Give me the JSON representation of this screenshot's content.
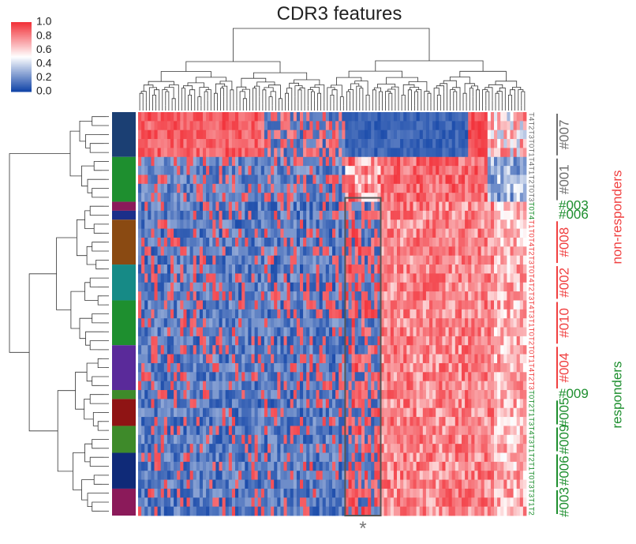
{
  "chart_data": {
    "type": "heatmap",
    "title": "CDR3 features",
    "colorbar": {
      "ticks": [
        "1.0",
        "0.8",
        "0.6",
        "0.4",
        "0.2",
        "0.0"
      ],
      "vmin": 0.0,
      "vmax": 1.0,
      "colors": [
        "#1446a8",
        "#ffffff",
        "#f2323a"
      ]
    },
    "n_feature_columns": 120,
    "rows": [
      {
        "label": "T4",
        "patient": "#007",
        "group": "non-responders"
      },
      {
        "label": "T2",
        "patient": "#007",
        "group": "non-responders"
      },
      {
        "label": "T3",
        "patient": "#007",
        "group": "non-responders"
      },
      {
        "label": "T0",
        "patient": "#007",
        "group": "non-responders"
      },
      {
        "label": "T1",
        "patient": "#007",
        "group": "non-responders"
      },
      {
        "label": "T4",
        "patient": "#001",
        "group": "non-responders"
      },
      {
        "label": "T1",
        "patient": "#001",
        "group": "non-responders"
      },
      {
        "label": "T2",
        "patient": "#001",
        "group": "non-responders"
      },
      {
        "label": "T0",
        "patient": "#001",
        "group": "non-responders"
      },
      {
        "label": "T3",
        "patient": "#001",
        "group": "non-responders"
      },
      {
        "label": "T0",
        "patient": "#003",
        "group": "responders"
      },
      {
        "label": "T4",
        "patient": "#006",
        "group": "responders"
      },
      {
        "label": "T1",
        "patient": "#008",
        "group": "non-responders"
      },
      {
        "label": "T0",
        "patient": "#008",
        "group": "non-responders"
      },
      {
        "label": "T4",
        "patient": "#008",
        "group": "non-responders"
      },
      {
        "label": "T2",
        "patient": "#008",
        "group": "non-responders"
      },
      {
        "label": "T3",
        "patient": "#008",
        "group": "non-responders"
      },
      {
        "label": "T0",
        "patient": "#002",
        "group": "non-responders"
      },
      {
        "label": "T4",
        "patient": "#002",
        "group": "non-responders"
      },
      {
        "label": "T2",
        "patient": "#002",
        "group": "non-responders"
      },
      {
        "label": "T3",
        "patient": "#002",
        "group": "non-responders"
      },
      {
        "label": "T4",
        "patient": "#010",
        "group": "non-responders"
      },
      {
        "label": "T3",
        "patient": "#010",
        "group": "non-responders"
      },
      {
        "label": "T1",
        "patient": "#010",
        "group": "non-responders"
      },
      {
        "label": "T0",
        "patient": "#010",
        "group": "non-responders"
      },
      {
        "label": "T2",
        "patient": "#010",
        "group": "non-responders"
      },
      {
        "label": "T0",
        "patient": "#004",
        "group": "non-responders"
      },
      {
        "label": "T1",
        "patient": "#004",
        "group": "non-responders"
      },
      {
        "label": "T4",
        "patient": "#004",
        "group": "non-responders"
      },
      {
        "label": "T2",
        "patient": "#004",
        "group": "non-responders"
      },
      {
        "label": "T3",
        "patient": "#004",
        "group": "non-responders"
      },
      {
        "label": "T0",
        "patient": "#009",
        "group": "responders"
      },
      {
        "label": "T2",
        "patient": "#005",
        "group": "responders"
      },
      {
        "label": "T1",
        "patient": "#005",
        "group": "responders"
      },
      {
        "label": "T3",
        "patient": "#005",
        "group": "responders"
      },
      {
        "label": "T4",
        "patient": "#009",
        "group": "responders"
      },
      {
        "label": "T3",
        "patient": "#009",
        "group": "responders"
      },
      {
        "label": "T1",
        "patient": "#009",
        "group": "responders"
      },
      {
        "label": "T2",
        "patient": "#006",
        "group": "responders"
      },
      {
        "label": "T1",
        "patient": "#006",
        "group": "responders"
      },
      {
        "label": "T0",
        "patient": "#006",
        "group": "responders"
      },
      {
        "label": "T3",
        "patient": "#006",
        "group": "responders"
      },
      {
        "label": "T3",
        "patient": "#003",
        "group": "responders"
      },
      {
        "label": "T1",
        "patient": "#003",
        "group": "responders"
      },
      {
        "label": "T2",
        "patient": "#003",
        "group": "responders"
      }
    ],
    "row_color_blocks": [
      {
        "start": 0,
        "end": 4,
        "color": "#1b3f73"
      },
      {
        "start": 5,
        "end": 9,
        "color": "#1e8f2f"
      },
      {
        "start": 10,
        "end": 10,
        "color": "#8b1a5a"
      },
      {
        "start": 11,
        "end": 11,
        "color": "#1b2f8a"
      },
      {
        "start": 12,
        "end": 16,
        "color": "#8a4a12"
      },
      {
        "start": 17,
        "end": 20,
        "color": "#168a86"
      },
      {
        "start": 21,
        "end": 25,
        "color": "#1e8f2f"
      },
      {
        "start": 26,
        "end": 30,
        "color": "#5a2a9a"
      },
      {
        "start": 31,
        "end": 31,
        "color": "#3e8a2a"
      },
      {
        "start": 32,
        "end": 34,
        "color": "#8f1414"
      },
      {
        "start": 35,
        "end": 37,
        "color": "#3e8a2a"
      },
      {
        "start": 38,
        "end": 41,
        "color": "#0f2a78"
      },
      {
        "start": 42,
        "end": 44,
        "color": "#8b1a5a"
      }
    ],
    "patient_labels": [
      {
        "text": "#007",
        "start": 0,
        "end": 4,
        "color": "#6e6e6e"
      },
      {
        "text": "#001",
        "start": 5,
        "end": 9,
        "color": "#6e6e6e"
      },
      {
        "text": "#003",
        "start": 10,
        "end": 10,
        "color": "#1e8f2f"
      },
      {
        "text": "#006",
        "start": 11,
        "end": 11,
        "color": "#1e8f2f"
      },
      {
        "text": "#008",
        "start": 12,
        "end": 16,
        "color": "#f04040"
      },
      {
        "text": "#002",
        "start": 17,
        "end": 20,
        "color": "#f04040"
      },
      {
        "text": "#010",
        "start": 21,
        "end": 25,
        "color": "#f04040"
      },
      {
        "text": "#004",
        "start": 26,
        "end": 30,
        "color": "#f04040"
      },
      {
        "text": "#009",
        "start": 31,
        "end": 31,
        "color": "#1e8f2f"
      },
      {
        "text": "#005",
        "start": 32,
        "end": 34,
        "color": "#1e8f2f"
      },
      {
        "text": "#009",
        "start": 35,
        "end": 37,
        "color": "#1e8f2f"
      },
      {
        "text": "#006",
        "start": 38,
        "end": 41,
        "color": "#1e8f2f"
      },
      {
        "text": "#003",
        "start": 42,
        "end": 44,
        "color": "#1e8f2f"
      }
    ],
    "group_labels": [
      {
        "text": "non-responders",
        "color": "#f04040"
      },
      {
        "text": "responders",
        "color": "#1e8f2f"
      }
    ],
    "highlight": {
      "col_start": 64,
      "col_end": 75,
      "row_start": 10,
      "row_end": 44,
      "marker": "*"
    }
  }
}
